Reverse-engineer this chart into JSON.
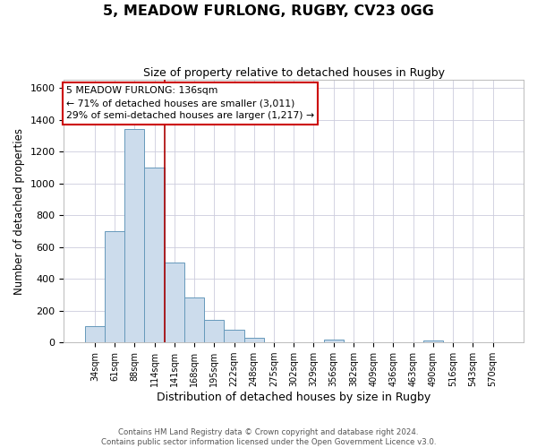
{
  "title": "5, MEADOW FURLONG, RUGBY, CV23 0GG",
  "subtitle": "Size of property relative to detached houses in Rugby",
  "xlabel": "Distribution of detached houses by size in Rugby",
  "ylabel": "Number of detached properties",
  "bar_labels": [
    "34sqm",
    "61sqm",
    "88sqm",
    "114sqm",
    "141sqm",
    "168sqm",
    "195sqm",
    "222sqm",
    "248sqm",
    "275sqm",
    "302sqm",
    "329sqm",
    "356sqm",
    "382sqm",
    "409sqm",
    "436sqm",
    "463sqm",
    "490sqm",
    "516sqm",
    "543sqm",
    "570sqm"
  ],
  "bar_values": [
    100,
    700,
    1340,
    1100,
    500,
    285,
    140,
    80,
    30,
    0,
    0,
    0,
    20,
    0,
    0,
    0,
    0,
    15,
    0,
    0,
    0
  ],
  "bar_color": "#ccdcec",
  "bar_edge_color": "#6699bb",
  "highlight_line_color": "#aa0000",
  "ylim": [
    0,
    1650
  ],
  "yticks": [
    0,
    200,
    400,
    600,
    800,
    1000,
    1200,
    1400,
    1600
  ],
  "annotation_line1": "5 MEADOW FURLONG: 136sqm",
  "annotation_line2": "← 71% of detached houses are smaller (3,011)",
  "annotation_line3": "29% of semi-detached houses are larger (1,217) →",
  "footer_text": "Contains HM Land Registry data © Crown copyright and database right 2024.\nContains public sector information licensed under the Open Government Licence v3.0.",
  "bg_color": "#ffffff",
  "grid_color": "#ccccdd"
}
